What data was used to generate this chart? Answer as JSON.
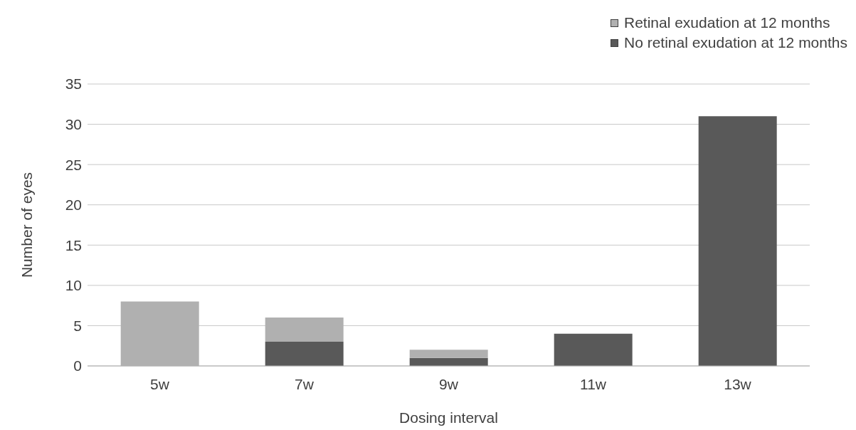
{
  "chart_data": {
    "type": "bar",
    "xlabel": "Dosing interval",
    "ylabel": "Number of eyes",
    "categories": [
      "5w",
      "7w",
      "9w",
      "11w",
      "13w"
    ],
    "series": [
      {
        "name": "No retinal exudation at 12 months",
        "color": "#595959",
        "values": [
          0,
          3,
          1,
          4,
          31
        ]
      },
      {
        "name": "Retinal exudation at 12 months",
        "color": "#b0b0b0",
        "values": [
          8,
          3,
          1,
          0,
          0
        ]
      }
    ],
    "stacked": true,
    "ylim": [
      0,
      35
    ],
    "yticks": [
      0,
      5,
      10,
      15,
      20,
      25,
      30,
      35
    ],
    "grid": "y",
    "legend": "top right"
  }
}
